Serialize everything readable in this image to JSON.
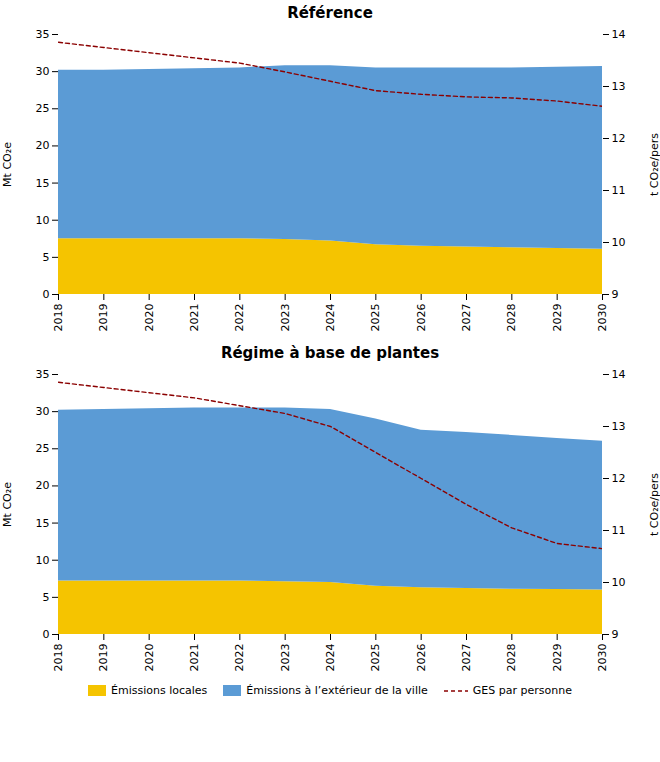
{
  "chart_data": [
    {
      "type": "area",
      "stacked": true,
      "title": "Référence",
      "x": [
        2018,
        2019,
        2020,
        2021,
        2022,
        2023,
        2024,
        2025,
        2026,
        2027,
        2028,
        2029,
        2030
      ],
      "xlim": [
        2018,
        2030
      ],
      "xticks": [
        2018,
        2019,
        2020,
        2021,
        2022,
        2023,
        2024,
        2025,
        2026,
        2027,
        2028,
        2029,
        2030
      ],
      "ylabel": "Mt CO₂e",
      "ylim": [
        0,
        35
      ],
      "yticks": [
        0,
        5,
        10,
        15,
        20,
        25,
        30,
        35
      ],
      "y2label": "t CO₂e/pers",
      "y2lim": [
        9,
        14
      ],
      "y2ticks": [
        9,
        10,
        11,
        12,
        13,
        14
      ],
      "grid": false,
      "series": [
        {
          "name": "Émissions locales",
          "color": "#F5C400",
          "values": [
            7.5,
            7.5,
            7.5,
            7.5,
            7.5,
            7.4,
            7.2,
            6.7,
            6.5,
            6.4,
            6.3,
            6.2,
            6.1
          ]
        },
        {
          "name": "Émissions à l’extérieur de la ville",
          "color": "#5B9BD5",
          "values": [
            22.7,
            22.7,
            22.8,
            22.9,
            23.0,
            23.4,
            23.6,
            23.8,
            24.0,
            24.1,
            24.2,
            24.4,
            24.6
          ]
        },
        {
          "name": "GES par personne",
          "color": "#8B0000",
          "type": "line",
          "axis": "y2",
          "line_style": "dashed",
          "values": [
            13.85,
            13.75,
            13.65,
            13.55,
            13.45,
            13.28,
            13.1,
            12.92,
            12.85,
            12.8,
            12.78,
            12.72,
            12.62
          ]
        }
      ]
    },
    {
      "type": "area",
      "stacked": true,
      "title": "Régime à base de plantes",
      "x": [
        2018,
        2019,
        2020,
        2021,
        2022,
        2023,
        2024,
        2025,
        2026,
        2027,
        2028,
        2029,
        2030
      ],
      "xlim": [
        2018,
        2030
      ],
      "xticks": [
        2018,
        2019,
        2020,
        2021,
        2022,
        2023,
        2024,
        2025,
        2026,
        2027,
        2028,
        2029,
        2030
      ],
      "ylabel": "Mt CO₂e",
      "ylim": [
        0,
        35
      ],
      "yticks": [
        0,
        5,
        10,
        15,
        20,
        25,
        30,
        35
      ],
      "y2label": "t CO₂e/pers",
      "y2lim": [
        9,
        14
      ],
      "y2ticks": [
        9,
        10,
        11,
        12,
        13,
        14
      ],
      "grid": false,
      "legend": "bottom",
      "series": [
        {
          "name": "Émissions locales",
          "color": "#F5C400",
          "values": [
            7.2,
            7.2,
            7.2,
            7.2,
            7.2,
            7.1,
            7.0,
            6.5,
            6.3,
            6.2,
            6.1,
            6.05,
            6.0
          ]
        },
        {
          "name": "Émissions à l’extérieur de la ville",
          "color": "#5B9BD5",
          "values": [
            23.0,
            23.1,
            23.2,
            23.3,
            23.3,
            23.4,
            23.3,
            22.5,
            21.2,
            21.0,
            20.7,
            20.35,
            20.0
          ]
        },
        {
          "name": "GES par personne",
          "color": "#8B0000",
          "type": "line",
          "axis": "y2",
          "line_style": "dashed",
          "values": [
            13.85,
            13.75,
            13.65,
            13.55,
            13.4,
            13.25,
            13.0,
            12.5,
            12.0,
            11.5,
            11.05,
            10.75,
            10.65
          ]
        }
      ]
    }
  ]
}
